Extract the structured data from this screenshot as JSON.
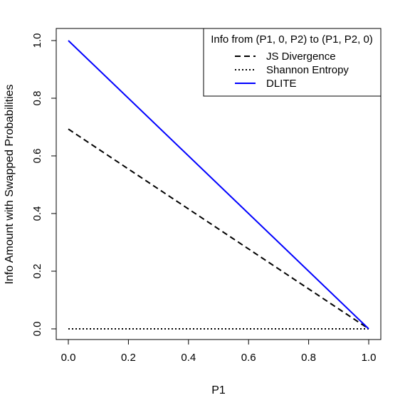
{
  "chart_data": {
    "type": "line",
    "xlabel": "P1",
    "ylabel": "Info Amount with Swapped Probabilities",
    "xlim": [
      0,
      1
    ],
    "ylim": [
      0,
      1
    ],
    "xticks": [
      0.0,
      0.2,
      0.4,
      0.6,
      0.8,
      1.0
    ],
    "xtick_labels": [
      "0.0",
      "0.2",
      "0.4",
      "0.6",
      "0.8",
      "1.0"
    ],
    "yticks": [
      0.0,
      0.2,
      0.4,
      0.6,
      0.8,
      1.0
    ],
    "ytick_labels": [
      "0.0",
      "0.2",
      "0.4",
      "0.6",
      "0.8",
      "1.0"
    ],
    "legend": {
      "title": "Info from (P1, 0, P2) to (P1, P2, 0)",
      "position": "top-right"
    },
    "series": [
      {
        "name": "JS Divergence",
        "x": [
          0,
          1
        ],
        "y": [
          0.693,
          0
        ],
        "color": "#000000",
        "dash": "dashed"
      },
      {
        "name": "Shannon Entropy",
        "x": [
          0,
          1
        ],
        "y": [
          0,
          0
        ],
        "color": "#000000",
        "dash": "dotted"
      },
      {
        "name": "DLITE",
        "x": [
          0,
          1
        ],
        "y": [
          1,
          0
        ],
        "color": "#0000ff",
        "dash": "solid"
      }
    ]
  }
}
